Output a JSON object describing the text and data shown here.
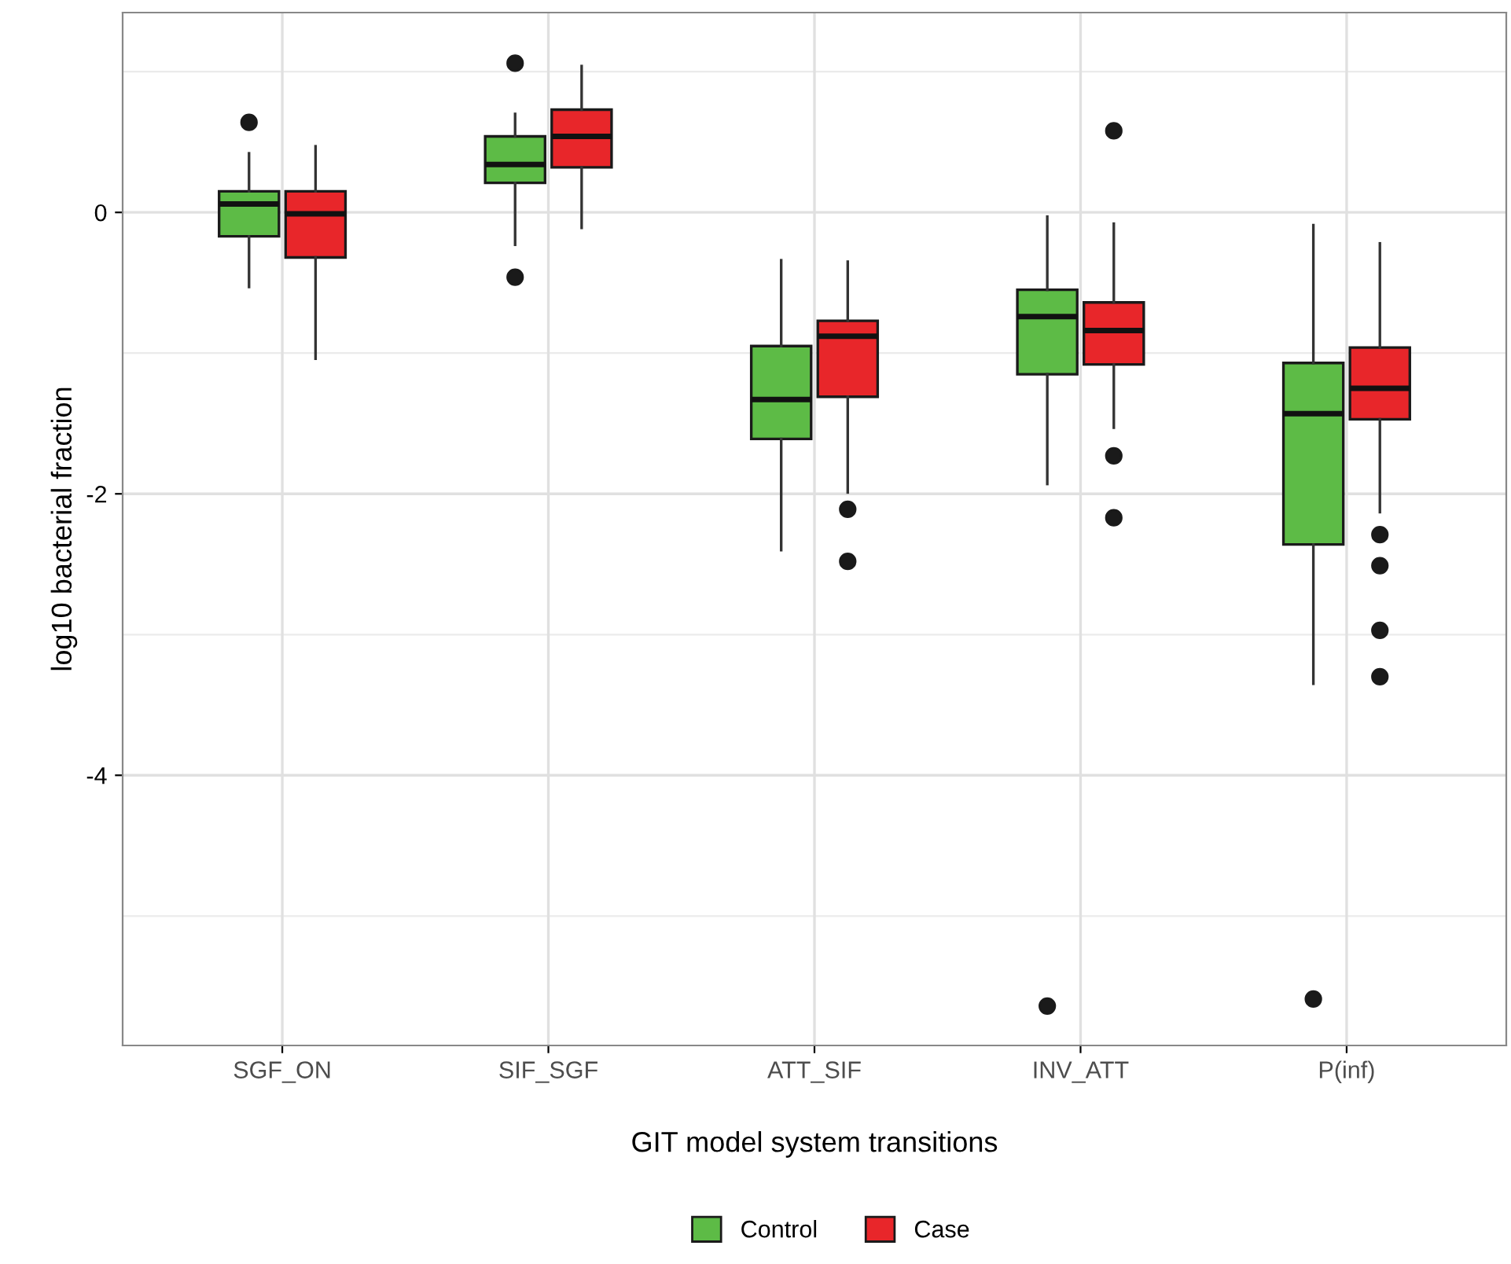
{
  "chart_data": {
    "type": "box",
    "xlabel": "GIT model system transitions",
    "ylabel": "log10 bacterial fraction",
    "categories": [
      "SGF_ON",
      "SIF_SGF",
      "ATT_SIF",
      "INV_ATT",
      "P(inf)"
    ],
    "ylim": [
      -5.92,
      1.42
    ],
    "yticks": [
      0,
      -2,
      -4
    ],
    "grid": true,
    "legend": "bottom",
    "series": [
      {
        "name": "Control",
        "color": "#5dbb46",
        "boxes": [
          {
            "low": -0.53,
            "q1": -0.17,
            "median": 0.06,
            "q3": 0.15,
            "high": 0.42,
            "outliers": [
              0.64
            ]
          },
          {
            "low": -0.23,
            "q1": 0.21,
            "median": 0.34,
            "q3": 0.54,
            "high": 0.7,
            "outliers": [
              1.06,
              -0.46
            ]
          },
          {
            "low": -2.4,
            "q1": -1.61,
            "median": -1.33,
            "q3": -0.95,
            "high": -0.34
          },
          {
            "low": -1.93,
            "q1": -1.15,
            "median": -0.74,
            "q3": -0.55,
            "high": -0.03,
            "outliers": [
              -5.64
            ]
          },
          {
            "low": -3.35,
            "q1": -2.36,
            "median": -1.43,
            "q3": -1.07,
            "high": -0.09,
            "outliers": [
              -5.59
            ]
          }
        ]
      },
      {
        "name": "Case",
        "color": "#e8262a",
        "boxes": [
          {
            "low": -1.04,
            "q1": -0.32,
            "median": -0.01,
            "q3": 0.15,
            "high": 0.47
          },
          {
            "low": -0.11,
            "q1": 0.32,
            "median": 0.54,
            "q3": 0.73,
            "high": 1.04
          },
          {
            "low": -1.99,
            "q1": -1.31,
            "median": -0.88,
            "q3": -0.77,
            "high": -0.35,
            "outliers": [
              -2.11,
              -2.48
            ]
          },
          {
            "low": -1.53,
            "q1": -1.08,
            "median": -0.84,
            "q3": -0.64,
            "high": -0.08,
            "outliers": [
              0.58,
              -1.73,
              -2.17
            ]
          },
          {
            "low": -2.13,
            "q1": -1.47,
            "median": -1.25,
            "q3": -0.96,
            "high": -0.22,
            "outliers": [
              -2.29,
              -2.51,
              -2.97,
              -3.3
            ]
          }
        ]
      }
    ]
  }
}
